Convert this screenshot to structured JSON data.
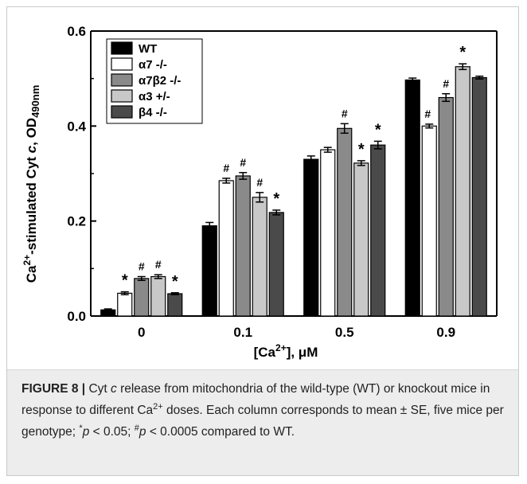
{
  "chart_data": {
    "type": "bar",
    "xlabel_main": "[Ca",
    "xlabel_sup": "2+",
    "xlabel_tail": "],  μM",
    "ylabel_main": "Ca",
    "ylabel_sup": "2+",
    "ylabel_tail": "-stimulated Cyt ",
    "ylabel_italic": "c",
    "ylabel_end": ", OD",
    "ylabel_sub": "490nm",
    "categories": [
      "0",
      "0.1",
      "0.5",
      "0.9"
    ],
    "ylim": [
      0.0,
      0.6
    ],
    "yticks": [
      "0.0",
      "0.2",
      "0.4",
      "0.6"
    ],
    "ytick_values": [
      0.0,
      0.2,
      0.4,
      0.6
    ],
    "legend_position": "top-left",
    "series": [
      {
        "name": "WT",
        "color": "#000000",
        "values": [
          0.013,
          0.19,
          0.33,
          0.497
        ],
        "errors": [
          0.002,
          0.007,
          0.007,
          0.004
        ],
        "markers": [
          "",
          "",
          "",
          ""
        ]
      },
      {
        "name": "α7 -/-",
        "color": "#ffffff",
        "values": [
          0.048,
          0.285,
          0.35,
          0.4
        ],
        "errors": [
          0.003,
          0.005,
          0.005,
          0.004
        ],
        "markers": [
          "*",
          "#",
          "",
          "#"
        ]
      },
      {
        "name": "α7β2 -/-",
        "color": "#8a8a8a",
        "values": [
          0.079,
          0.295,
          0.395,
          0.46
        ],
        "errors": [
          0.004,
          0.007,
          0.01,
          0.008
        ],
        "markers": [
          "#",
          "#",
          "#",
          "#"
        ]
      },
      {
        "name": "α3 +/-",
        "color": "#c8c8c8",
        "values": [
          0.083,
          0.25,
          0.322,
          0.525
        ],
        "errors": [
          0.004,
          0.01,
          0.005,
          0.006
        ],
        "markers": [
          "#",
          "#",
          "*",
          "*"
        ]
      },
      {
        "name": "β4 -/-",
        "color": "#4a4a4a",
        "values": [
          0.047,
          0.218,
          0.36,
          0.502
        ],
        "errors": [
          0.002,
          0.005,
          0.008,
          0.003
        ],
        "markers": [
          "*",
          "*",
          "*",
          ""
        ]
      }
    ]
  },
  "caption": {
    "label": "FIGURE 8 |",
    "t1": " Cyt ",
    "t2": "c",
    "t3": " release from mitochondria of the wild-type (WT) or knockout mice in response to different Ca",
    "t4": "2+",
    "t5": " doses. Each column corresponds to mean ± SE, five mice per genotype; ",
    "t6": "*",
    "t7": "p",
    "t8": " < 0.05; ",
    "t9": "#",
    "t10": "p",
    "t11": " < 0.0005 compared to WT."
  }
}
